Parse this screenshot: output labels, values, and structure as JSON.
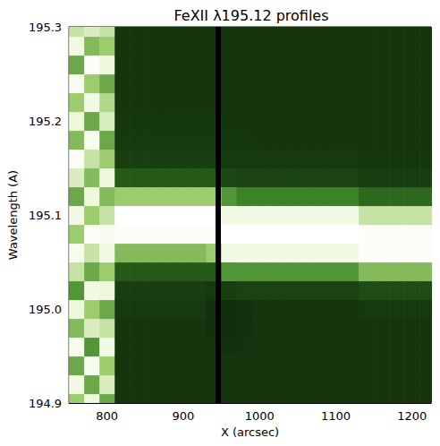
{
  "chart_data": {
    "type": "heatmap",
    "title": "FeXII λ195.12 profiles",
    "x_label": "X (arcsec)",
    "y_label": "Wavelength (A)",
    "x": [
      760,
      780,
      800,
      820,
      840,
      860,
      880,
      900,
      920,
      940,
      960,
      980,
      1000,
      1020,
      1040,
      1060,
      1080,
      1100,
      1120,
      1140,
      1160,
      1180,
      1200,
      1220
    ],
    "y": [
      194.9,
      194.92,
      194.94,
      194.96,
      194.98,
      195.0,
      195.02,
      195.04,
      195.06,
      195.08,
      195.1,
      195.12,
      195.14,
      195.16,
      195.18,
      195.2,
      195.22,
      195.24,
      195.26,
      195.28,
      195.3
    ],
    "intensity": [
      [
        0.6,
        0.85,
        0.5,
        0.9,
        0.55,
        0.8,
        0.45,
        0.7,
        0.9,
        0.6,
        0.85,
        0.5,
        0.75,
        0.95,
        0.55,
        0.8,
        0.6,
        0.9,
        0.5,
        0.85,
        0.7
      ],
      [
        0.8,
        0.5,
        0.9,
        0.45,
        0.75,
        0.6,
        0.85,
        0.5,
        0.7,
        0.95,
        0.6,
        0.8,
        0.55,
        0.7,
        0.9,
        0.5,
        0.85,
        0.6,
        0.95,
        0.55,
        0.75
      ],
      [
        0.5,
        0.75,
        0.6,
        0.85,
        0.7,
        0.5,
        0.8,
        0.6,
        0.85,
        0.9,
        0.7,
        0.55,
        0.8,
        0.6,
        0.5,
        0.75,
        0.65,
        0.5,
        0.8,
        0.6,
        0.7
      ],
      [
        0.08,
        0.08,
        0.08,
        0.08,
        0.08,
        0.1,
        0.12,
        0.25,
        0.55,
        0.95,
        1.0,
        0.6,
        0.25,
        0.13,
        0.1,
        0.09,
        0.08,
        0.08,
        0.08,
        0.08,
        0.08
      ],
      [
        0.08,
        0.08,
        0.08,
        0.08,
        0.08,
        0.1,
        0.12,
        0.25,
        0.55,
        0.95,
        1.0,
        0.6,
        0.25,
        0.13,
        0.1,
        0.09,
        0.08,
        0.08,
        0.08,
        0.08,
        0.08
      ],
      [
        0.08,
        0.08,
        0.08,
        0.08,
        0.08,
        0.1,
        0.12,
        0.25,
        0.55,
        0.95,
        1.0,
        0.6,
        0.25,
        0.13,
        0.1,
        0.09,
        0.08,
        0.08,
        0.08,
        0.08,
        0.08
      ],
      [
        0.08,
        0.08,
        0.08,
        0.08,
        0.08,
        0.1,
        0.12,
        0.25,
        0.55,
        0.95,
        1.0,
        0.6,
        0.25,
        0.13,
        0.1,
        0.09,
        0.08,
        0.08,
        0.08,
        0.08,
        0.08
      ],
      [
        0.08,
        0.08,
        0.08,
        0.08,
        0.08,
        0.1,
        0.12,
        0.25,
        0.55,
        0.95,
        1.0,
        0.6,
        0.25,
        0.13,
        0.1,
        0.09,
        0.08,
        0.08,
        0.08,
        0.08,
        0.08
      ],
      [
        0.08,
        0.08,
        0.08,
        0.08,
        0.08,
        0.1,
        0.12,
        0.25,
        0.55,
        0.95,
        1.0,
        0.6,
        0.25,
        0.13,
        0.1,
        0.09,
        0.08,
        0.08,
        0.08,
        0.08,
        0.08
      ],
      [
        0.08,
        0.08,
        0.08,
        0.08,
        0.06,
        0.05,
        0.1,
        0.25,
        0.6,
        0.95,
        1.0,
        0.6,
        0.25,
        0.13,
        0.1,
        0.09,
        0.08,
        0.08,
        0.08,
        0.08,
        0.08
      ],
      [
        0.08,
        0.08,
        0.08,
        0.06,
        0.04,
        0.04,
        0.12,
        0.45,
        0.85,
        1.0,
        0.85,
        0.45,
        0.18,
        0.1,
        0.09,
        0.08,
        0.08,
        0.08,
        0.08,
        0.08,
        0.08
      ],
      [
        0.08,
        0.08,
        0.08,
        0.07,
        0.06,
        0.06,
        0.15,
        0.45,
        0.85,
        1.0,
        0.85,
        0.4,
        0.15,
        0.1,
        0.09,
        0.08,
        0.08,
        0.08,
        0.08,
        0.08,
        0.08
      ],
      [
        0.08,
        0.08,
        0.08,
        0.08,
        0.08,
        0.08,
        0.15,
        0.45,
        0.85,
        1.0,
        0.85,
        0.4,
        0.15,
        0.1,
        0.08,
        0.08,
        0.08,
        0.08,
        0.08,
        0.08,
        0.08
      ],
      [
        0.08,
        0.08,
        0.08,
        0.08,
        0.08,
        0.08,
        0.15,
        0.45,
        0.85,
        1.0,
        0.85,
        0.4,
        0.15,
        0.1,
        0.08,
        0.08,
        0.08,
        0.08,
        0.08,
        0.08,
        0.08
      ],
      [
        0.08,
        0.08,
        0.08,
        0.08,
        0.08,
        0.08,
        0.15,
        0.45,
        0.85,
        1.0,
        0.85,
        0.4,
        0.15,
        0.1,
        0.08,
        0.08,
        0.08,
        0.08,
        0.08,
        0.08,
        0.08
      ],
      [
        0.08,
        0.08,
        0.08,
        0.08,
        0.08,
        0.08,
        0.15,
        0.45,
        0.85,
        1.0,
        0.85,
        0.4,
        0.15,
        0.1,
        0.08,
        0.08,
        0.08,
        0.08,
        0.08,
        0.08,
        0.08
      ],
      [
        0.08,
        0.08,
        0.08,
        0.08,
        0.08,
        0.08,
        0.15,
        0.45,
        0.85,
        1.0,
        0.85,
        0.4,
        0.15,
        0.1,
        0.08,
        0.08,
        0.08,
        0.08,
        0.08,
        0.08,
        0.08
      ],
      [
        0.08,
        0.08,
        0.08,
        0.08,
        0.08,
        0.08,
        0.15,
        0.45,
        0.85,
        1.0,
        0.85,
        0.4,
        0.15,
        0.1,
        0.08,
        0.08,
        0.08,
        0.08,
        0.08,
        0.08,
        0.08
      ],
      [
        0.08,
        0.08,
        0.08,
        0.08,
        0.08,
        0.08,
        0.15,
        0.45,
        0.85,
        1.0,
        0.85,
        0.4,
        0.15,
        0.1,
        0.08,
        0.08,
        0.08,
        0.08,
        0.08,
        0.08,
        0.08
      ],
      [
        0.08,
        0.08,
        0.08,
        0.08,
        0.08,
        0.1,
        0.2,
        0.55,
        0.95,
        0.95,
        0.7,
        0.3,
        0.12,
        0.09,
        0.08,
        0.08,
        0.08,
        0.08,
        0.08,
        0.08,
        0.08
      ],
      [
        0.08,
        0.08,
        0.08,
        0.08,
        0.08,
        0.1,
        0.2,
        0.55,
        0.95,
        0.95,
        0.7,
        0.3,
        0.12,
        0.09,
        0.08,
        0.08,
        0.08,
        0.08,
        0.08,
        0.08,
        0.08
      ],
      [
        0.08,
        0.08,
        0.08,
        0.08,
        0.08,
        0.1,
        0.2,
        0.55,
        0.95,
        0.95,
        0.7,
        0.3,
        0.12,
        0.09,
        0.08,
        0.08,
        0.08,
        0.08,
        0.08,
        0.08,
        0.08
      ],
      [
        0.08,
        0.08,
        0.08,
        0.08,
        0.08,
        0.1,
        0.2,
        0.55,
        0.95,
        0.95,
        0.7,
        0.3,
        0.12,
        0.09,
        0.08,
        0.08,
        0.08,
        0.08,
        0.08,
        0.08,
        0.08
      ],
      [
        0.08,
        0.08,
        0.08,
        0.08,
        0.08,
        0.1,
        0.2,
        0.55,
        0.95,
        0.95,
        0.7,
        0.3,
        0.12,
        0.09,
        0.08,
        0.08,
        0.08,
        0.08,
        0.08,
        0.08,
        0.08
      ]
    ],
    "zlim": [
      0,
      1
    ],
    "vlines": [
      945
    ],
    "xlim": [
      750,
      1225
    ],
    "xticks": [
      800,
      900,
      1000,
      1100,
      1200
    ],
    "ylim": [
      194.9,
      195.3
    ],
    "yticks": [
      194.9,
      {
        "value": 195,
        "label": "195.0"
      },
      195.1,
      195.2,
      195.3
    ]
  }
}
